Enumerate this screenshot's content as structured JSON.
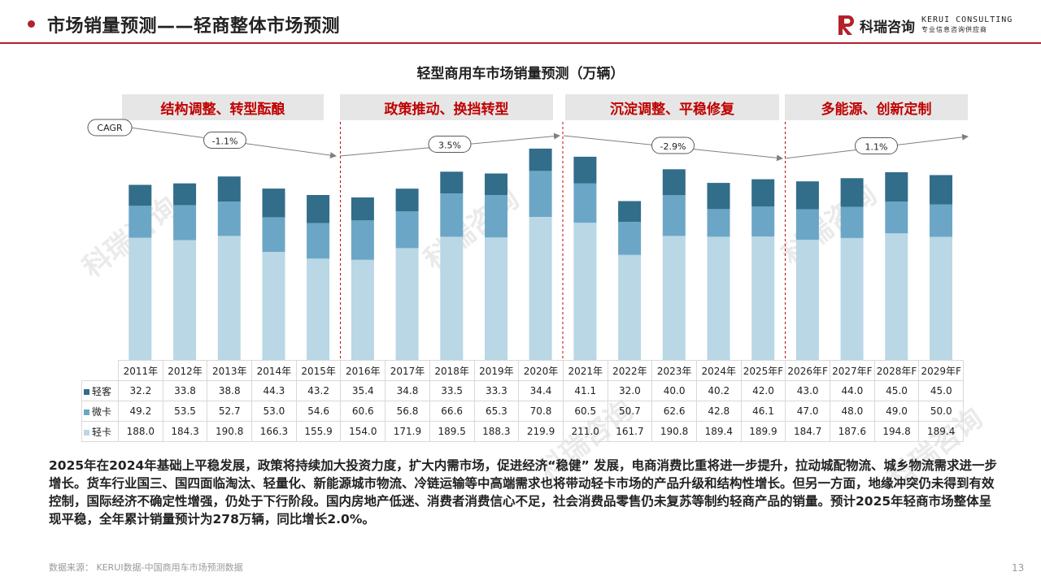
{
  "header": {
    "title": "市场销量预测——轻商整体市场预测",
    "logo_cn": "科瑞咨询",
    "logo_en": "KERUI CONSULTING",
    "logo_tagline": "专业信息咨询供应商",
    "brand_color": "#b3212b"
  },
  "chart_data": {
    "type": "bar",
    "stacked": true,
    "title": "轻型商用车市场销量预测（万辆）",
    "categories": [
      "2011年",
      "2012年",
      "2013年",
      "2014年",
      "2015年",
      "2016年",
      "2017年",
      "2018年",
      "2019年",
      "2020年",
      "2021年",
      "2022年",
      "2023年",
      "2024年",
      "2025年F",
      "2026年F",
      "2027年F",
      "2028年F",
      "2029年F"
    ],
    "series": [
      {
        "name": "轻卡",
        "color": "#b9d7e5",
        "values": [
          188.0,
          184.3,
          190.8,
          166.3,
          155.9,
          154.0,
          171.9,
          189.5,
          188.3,
          219.9,
          211.0,
          161.7,
          190.8,
          189.4,
          189.9,
          184.7,
          187.6,
          194.8,
          189.4
        ]
      },
      {
        "name": "微卡",
        "color": "#6ca6c6",
        "values": [
          49.2,
          53.5,
          52.7,
          53.0,
          54.6,
          60.6,
          56.8,
          66.6,
          65.3,
          70.8,
          60.5,
          50.7,
          62.6,
          42.8,
          46.1,
          47.0,
          48.0,
          49.0,
          50.0
        ]
      },
      {
        "name": "轻客",
        "color": "#326d8a",
        "values": [
          32.2,
          33.8,
          38.8,
          44.3,
          43.2,
          35.4,
          34.8,
          33.5,
          33.3,
          34.4,
          41.1,
          32.0,
          40.0,
          40.2,
          42.0,
          43.0,
          44.0,
          45.0,
          45.0
        ]
      }
    ],
    "table_rows_order": [
      "轻客",
      "微卡",
      "轻卡"
    ],
    "phases": [
      {
        "label": "结构调整、转型酝酿",
        "cagr": "-1.1%"
      },
      {
        "label": "政策推动、换挡转型",
        "cagr": "3.5%"
      },
      {
        "label": "沉淀调整、平稳修复",
        "cagr": "-2.9%"
      },
      {
        "label": "多能源、创新定制",
        "cagr": "1.1%"
      }
    ],
    "cagr_label": "CAGR",
    "grid": false,
    "legend": "table"
  },
  "summary": "2025年在2024年基础上平稳发展，政策将持续加大投资力度，扩大内需市场，促进经济“稳健” 发展，电商消费比重将进一步提升，拉动城配物流、城乡物流需求进一步增长。货车行业国三、国四面临淘汰、轻量化、新能源城市物流、冷链运输等中高端需求也将带动轻卡市场的产品升级和结构性增长。但另一方面，地缘冲突仍未得到有效控制，国际经济不确定性增强，仍处于下行阶段。国内房地产低迷、消费者消费信心不足，社会消费品零售仍未复苏等制约轻商产品的销量。预计2025年轻商市场整体呈现平稳，全年累计销量预计为278万辆，同比增长2.0%。",
  "footer": {
    "source": "数据来源： KERUI数据-中国商用车市场预测数据",
    "page_number": "13"
  },
  "watermark": "科瑞咨询"
}
